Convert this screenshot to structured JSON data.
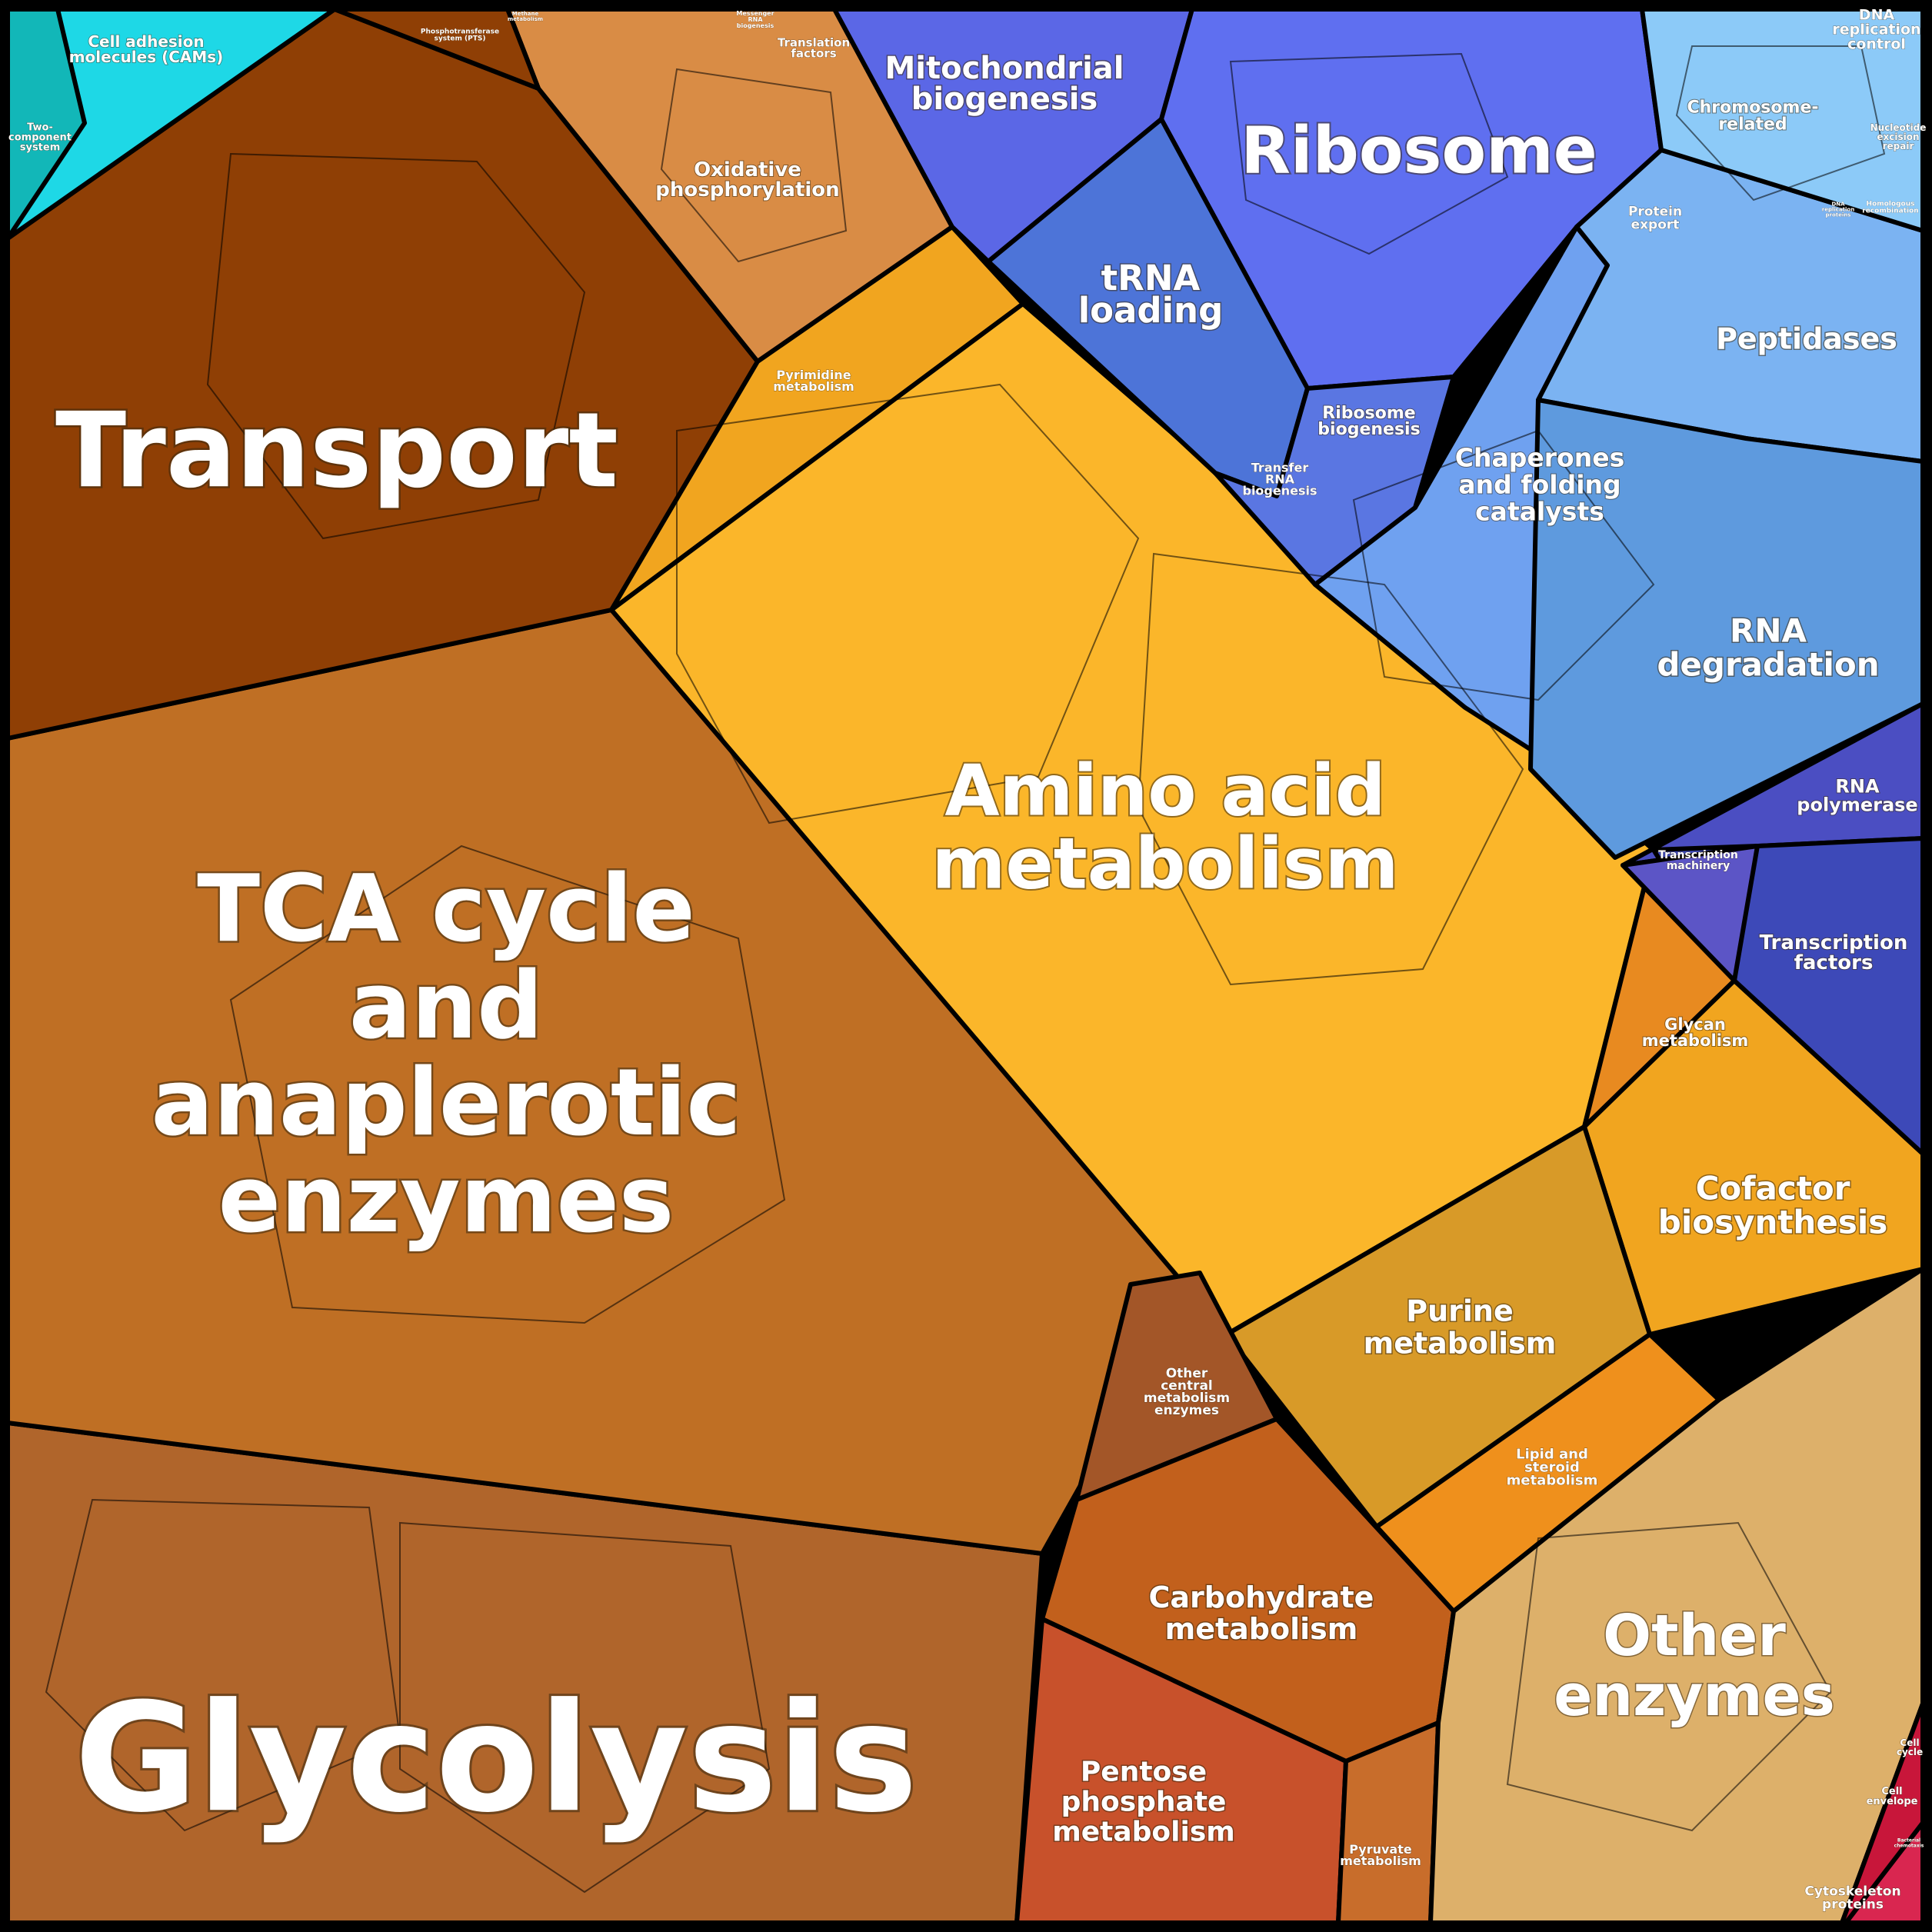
{
  "diagram": {
    "type": "voronoi-treemap",
    "colors": {
      "glycolysis": "#b0652b",
      "tca": "#bf6f24",
      "transport": "#8f3f05",
      "oxphos": "#d98c45",
      "amino": "#fbb62a",
      "purine": "#d89a28",
      "cofactor": "#f1a51f",
      "lipid": "#ef901c",
      "glycan": "#e88a20",
      "carbohydrate": "#c2601c",
      "pentose": "#c8512b",
      "pyruvate": "#c86d2b",
      "other_central": "#a35628",
      "other_enzymes": "#ddb06a",
      "ribosome": "#5f6ff0",
      "mito": "#5b67e6",
      "trna": "#4d74d8",
      "ribo_biogenesis": "#5a76e2",
      "chaperones": "#6fa1f0",
      "peptidases": "#7bb3f2",
      "rna_degradation": "#5e9ade",
      "chromosome": "#8ccaf8",
      "rna_polymerase": "#4b4ec2",
      "transcription_factors": "#3d49b8",
      "transcription_machinery": "#5c55c6",
      "cam": "#1ed8e6",
      "two_component": "#12b7b8",
      "cell_cycle": "#d42a3a",
      "cell_envelope": "#c8163a",
      "cytoskeleton": "#d92650"
    },
    "labels": {
      "glycolysis": "Glycolysis",
      "tca": [
        "TCA cycle",
        "and",
        "anaplerotic",
        "enzymes"
      ],
      "transport": "Transport",
      "amino": [
        "Amino acid",
        "metabolism"
      ],
      "ribosome": "Ribosome",
      "mito": [
        "Mitochondrial",
        "biogenesis"
      ],
      "trna": [
        "tRNA",
        "loading"
      ],
      "oxphos": [
        "Oxidative",
        "phosphorylation"
      ],
      "pyrimidine": [
        "Pyrimidine",
        "metabolism"
      ],
      "ribo_biogenesis": [
        "Ribosome",
        "biogenesis"
      ],
      "transfer_rna": [
        "Transfer",
        "RNA",
        "biogenesis"
      ],
      "chaperones": [
        "Chaperones",
        "and folding",
        "catalysts"
      ],
      "peptidases": "Peptidases",
      "rna_degradation": [
        "RNA",
        "degradation"
      ],
      "chromosome": [
        "Chromosome-",
        "related"
      ],
      "dna_replication_control": [
        "DNA",
        "replication",
        "control"
      ],
      "nucleotide_excision": [
        "Nucleotide",
        "excision",
        "repair"
      ],
      "protein_export": [
        "Protein",
        "export"
      ],
      "translation_factors": [
        "Translation",
        "factors"
      ],
      "messenger_rna": [
        "Messenger",
        "RNA",
        "biogenesis"
      ],
      "rna_polymerase": [
        "RNA",
        "polymerase"
      ],
      "transcription_machinery": [
        "Transcription",
        "machinery"
      ],
      "transcription_factors": [
        "Transcription",
        "factors"
      ],
      "glycan": [
        "Glycan",
        "metabolism"
      ],
      "cofactor": [
        "Cofactor",
        "biosynthesis"
      ],
      "purine": [
        "Purine",
        "metabolism"
      ],
      "lipid": [
        "Lipid and",
        "steroid",
        "metabolism"
      ],
      "other_central": [
        "Other",
        "central",
        "metabolism",
        "enzymes"
      ],
      "carbohydrate": [
        "Carbohydrate",
        "metabolism"
      ],
      "pentose": [
        "Pentose",
        "phosphate",
        "metabolism"
      ],
      "pyruvate": [
        "Pyruvate",
        "metabolism"
      ],
      "other_enzymes": [
        "Other",
        "enzymes"
      ],
      "cam": [
        "Cell adhesion",
        "molecules (CAMs)"
      ],
      "two_component": [
        "Two-",
        "component",
        "system"
      ],
      "pts": [
        "Phosphotransferase",
        "system (PTS)"
      ],
      "methane": [
        "Methane",
        "metabolism"
      ],
      "cell_cycle": [
        "Cell",
        "cycle"
      ],
      "cell_envelope": [
        "Cell",
        "envelope"
      ],
      "bacterial_chemotaxis": [
        "Bacterial",
        "chemotaxis"
      ],
      "cytoskeleton": [
        "Cytoskeleton",
        "proteins"
      ],
      "dna_replication_proteins": [
        "DNA",
        "replication",
        "proteins"
      ],
      "homologous_recombination": [
        "Homologous",
        "recombination"
      ]
    }
  }
}
